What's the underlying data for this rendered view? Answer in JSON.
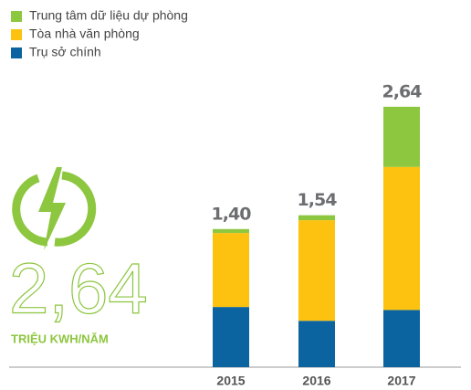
{
  "chart_data": {
    "type": "stacked_bar",
    "categories": [
      "2015",
      "2016",
      "2017"
    ],
    "series": [
      {
        "name": "Trung tâm dữ liệu dự phòng",
        "color": "#8dc63f",
        "values": [
          0.04,
          0.05,
          0.61
        ]
      },
      {
        "name": "Tòa nhà văn phòng",
        "color": "#fdc20f",
        "values": [
          0.75,
          1.02,
          1.45
        ]
      },
      {
        "name": "Trụ sở chính",
        "color": "#0b64a0",
        "values": [
          0.61,
          0.47,
          0.58
        ]
      }
    ],
    "totals": [
      1.4,
      1.54,
      2.64
    ],
    "total_labels": [
      "1,40",
      "1,54",
      "2,64"
    ],
    "highlight": {
      "value_label": "2,64",
      "unit": "TRIỆU KWH/NĂM"
    }
  }
}
